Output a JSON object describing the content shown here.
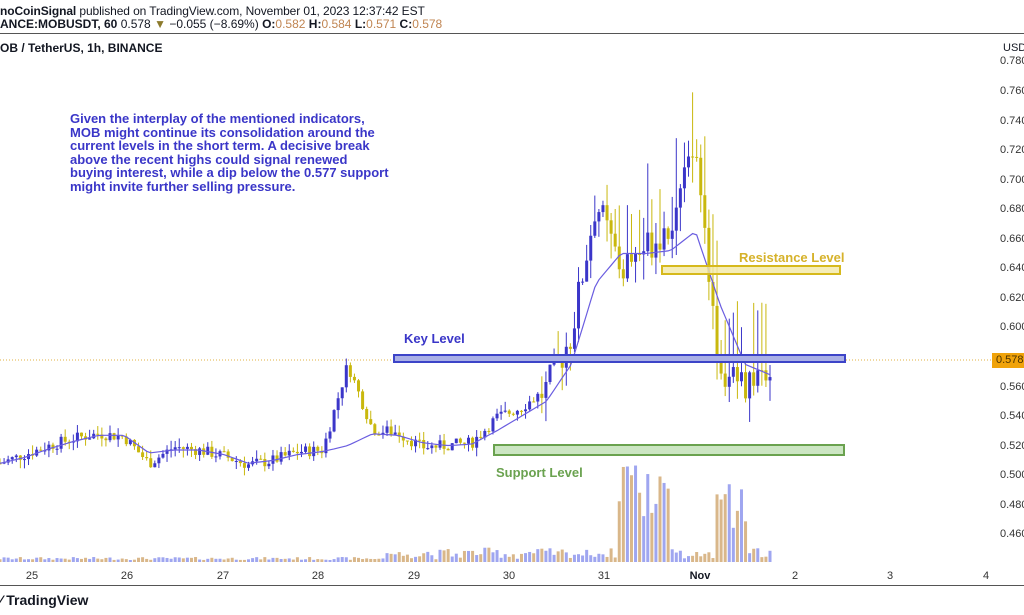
{
  "header": {
    "publisher": "noCoinSignal",
    "published_text": " published on TradingView.com, November 01, 2023 12:37:42 EST",
    "symbol_line": "ANCE:MOBUSDT, 60",
    "last_price": "0.578",
    "change_arrow": "▼",
    "change": "−0.055 (−8.69%)",
    "ohlc": {
      "o_label": "O:",
      "o": "0.582",
      "h_label": "H:",
      "h": "0.584",
      "l_label": "L:",
      "l": "0.571",
      "c_label": "C:",
      "c": "0.578"
    }
  },
  "legend": {
    "title": "OB / TetherUS, 1h, BINANCE"
  },
  "axis": {
    "currency": "USD",
    "current_price_tag": "0.578",
    "y_ticks": [
      "0.780",
      "0.760",
      "0.740",
      "0.720",
      "0.700",
      "0.680",
      "0.660",
      "0.640",
      "0.620",
      "0.600",
      "0.560",
      "0.540",
      "0.520",
      "0.500",
      "0.480",
      "0.460"
    ],
    "x_ticks": [
      "25",
      "26",
      "27",
      "28",
      "29",
      "30",
      "31",
      "Nov",
      "2",
      "3",
      "4"
    ]
  },
  "annotations": {
    "note": "Given the interplay of the mentioned indicators, MOB might continue its consolidation around the current levels in the short term. A decisive break above the recent highs could signal renewed buying interest, while a dip below the 0.577 support might invite further selling pressure.",
    "key_level": "Key Level",
    "resistance_level": "Resistance Level",
    "support_level": "Support Level"
  },
  "footer": {
    "brand": "TradingView"
  },
  "colors": {
    "up": "#3b36c9",
    "down": "#c9b80e",
    "ma_line": "#6a5de0",
    "key_level_fill": "#aab0e6",
    "key_level_border": "#3d44c8",
    "resistance_fill": "#f3e9a6",
    "resistance_border": "#d6b91c",
    "support_fill": "#c7e3bd",
    "support_border": "#6aa24f",
    "price_tag": "#f0a30a",
    "vol_up": "#9fa6f0",
    "vol_down": "#d9b78a"
  },
  "chart_data": {
    "type": "candlestick",
    "title": "MOB / TetherUS, 1h, BINANCE",
    "xlabel": "",
    "ylabel": "USD",
    "ylim": [
      0.44,
      0.785
    ],
    "x_categories": [
      "25",
      "26",
      "27",
      "28",
      "29",
      "30",
      "31",
      "Nov",
      "2",
      "3",
      "4"
    ],
    "grid": false,
    "last_price": 0.578,
    "horizontal_levels": [
      {
        "name": "Key Level",
        "low": 0.576,
        "high": 0.58
      },
      {
        "name": "Resistance Level",
        "low": 0.636,
        "high": 0.64
      },
      {
        "name": "Support Level",
        "low": 0.516,
        "high": 0.523
      }
    ],
    "series": [
      {
        "name": "MOBUSDT close (approx, 4h samples)",
        "x": [
          "24.9",
          "25.2",
          "25.5",
          "25.8",
          "26.1",
          "26.4",
          "26.7",
          "27.0",
          "27.3",
          "27.6",
          "27.9",
          "28.2",
          "28.5",
          "28.8",
          "28.9",
          "29.2",
          "29.5",
          "29.8",
          "30.1",
          "30.4",
          "30.7",
          "31.0",
          "31.3",
          "31.5",
          "31.7",
          "31.9",
          "Nov 1.0",
          "Nov 1.2",
          "Nov 1.35",
          "Nov 1.5",
          "Nov 1.6",
          "Nov 1.7"
        ],
        "values": [
          0.508,
          0.514,
          0.52,
          0.525,
          0.528,
          0.526,
          0.508,
          0.519,
          0.517,
          0.513,
          0.507,
          0.51,
          0.516,
          0.517,
          0.575,
          0.531,
          0.529,
          0.519,
          0.52,
          0.522,
          0.539,
          0.546,
          0.558,
          0.595,
          0.685,
          0.64,
          0.655,
          0.67,
          0.721,
          0.57,
          0.562,
          0.578
        ]
      },
      {
        "name": "Moving Average",
        "values": [
          0.508,
          0.512,
          0.518,
          0.523,
          0.527,
          0.527,
          0.515,
          0.517,
          0.517,
          0.514,
          0.508,
          0.51,
          0.514,
          0.516,
          0.52,
          0.528,
          0.527,
          0.522,
          0.52,
          0.521,
          0.53,
          0.54,
          0.55,
          0.575,
          0.63,
          0.65,
          0.65,
          0.652,
          0.665,
          0.615,
          0.575,
          0.568
        ]
      },
      {
        "name": "Volume (relative)",
        "peaks": [
          {
            "x": "28.8",
            "v": 0.18
          },
          {
            "x": "31.6",
            "v": 1.0
          },
          {
            "x": "31.65",
            "v": 0.73
          },
          {
            "x": "Nov 1.4",
            "v": 0.62
          },
          {
            "x": "Nov 1.45",
            "v": 0.5
          }
        ]
      }
    ]
  }
}
